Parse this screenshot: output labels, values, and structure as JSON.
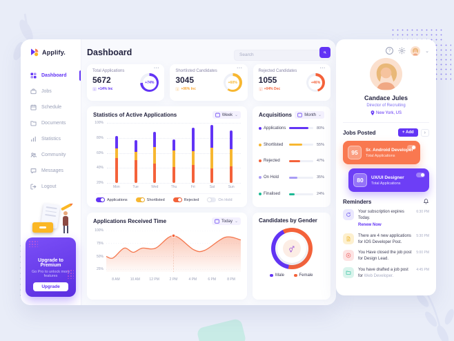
{
  "sidebar": {
    "logo": "Applify.",
    "items": [
      {
        "label": "Dashboard",
        "active": true
      },
      {
        "label": "Jobs"
      },
      {
        "label": "Schedule"
      },
      {
        "label": "Documents"
      },
      {
        "label": "Statistics"
      },
      {
        "label": "Community"
      },
      {
        "label": "Messages"
      },
      {
        "label": "Logout"
      }
    ],
    "upgrade": {
      "title": "Upgrade to Premium",
      "subtitle": "Go Pro to unlock more features",
      "button": "Upgrade"
    }
  },
  "header": {
    "title": "Dashboard",
    "search_placeholder": "Search"
  },
  "stat_cards": [
    {
      "label": "Total Applications",
      "value": "5672",
      "ring_label": "+74%",
      "ring_pct": 74,
      "color": "#6234f5",
      "delta": "+14% Inc",
      "delta_color": "#6234f5",
      "menu": "•••"
    },
    {
      "label": "Shortlisted Candidates",
      "value": "3045",
      "ring_label": "+60%",
      "ring_pct": 60,
      "color": "#f7b731",
      "delta": "+06% Inc",
      "delta_color": "#f7a431",
      "menu": "•••"
    },
    {
      "label": "Rejected Candidates",
      "value": "1055",
      "ring_label": "+46%",
      "ring_pct": 46,
      "color": "#f4623a",
      "delta": "+04% Dec",
      "delta_color": "#f4623a",
      "menu": "•••"
    }
  ],
  "chart_data": [
    {
      "id": "active_applications",
      "type": "bar",
      "title": "Statistics of Active Applications",
      "period": "Week",
      "categories": [
        "Mon",
        "Tue",
        "Wed",
        "Thu",
        "Fri",
        "Sat",
        "Sun"
      ],
      "baseline": 20,
      "ylim": [
        20,
        100
      ],
      "yticks": [
        "100%",
        "80%",
        "60%",
        "40%",
        "20%"
      ],
      "stack_tops": {
        "rejected": [
          53,
          50,
          46,
          41,
          44,
          39,
          42
        ],
        "shortlisted": [
          66,
          61,
          68,
          63,
          62,
          67,
          65
        ],
        "applications": [
          83,
          77,
          88,
          78,
          94,
          97,
          90
        ]
      },
      "colors": {
        "applications": "#6234f5",
        "shortlisted": "#f7b731",
        "rejected": "#f4623a",
        "on_hold": "#e3e6f3"
      },
      "legend": [
        {
          "label": "Applications",
          "color": "#6234f5",
          "on": true
        },
        {
          "label": "Shortlisted",
          "color": "#f7b731",
          "on": true
        },
        {
          "label": "Rejected",
          "color": "#f4623a",
          "on": true
        },
        {
          "label": "On Hold",
          "color": "#e3e6f3",
          "on": false
        }
      ]
    },
    {
      "id": "acquisitions",
      "type": "bar",
      "title": "Acquisitions",
      "period": "Month",
      "items": [
        {
          "label": "Applications",
          "value": 80,
          "color": "#6234f5"
        },
        {
          "label": "Shortlisted",
          "value": 55,
          "color": "#f7b731"
        },
        {
          "label": "Rejected",
          "value": 47,
          "color": "#f4623a"
        },
        {
          "label": "On Hold",
          "value": 35,
          "color": "#a99df5"
        },
        {
          "label": "Finalised",
          "value": 24,
          "color": "#1db994"
        }
      ]
    },
    {
      "id": "received_time",
      "type": "area",
      "title": "Applications Received Time",
      "period": "Today",
      "color": "#f4764c",
      "x_labels": [
        "8 AM",
        "10 AM",
        "12 PM",
        "2 PM",
        "4 PM",
        "6 PM",
        "8 PM"
      ],
      "yticks": [
        "100%",
        "75%",
        "50%",
        "25%"
      ],
      "ylim": [
        20,
        100
      ],
      "points": [
        [
          0,
          50
        ],
        [
          0.6,
          47
        ],
        [
          1.6,
          66
        ],
        [
          2.4,
          58
        ],
        [
          3.2,
          66
        ],
        [
          4.4,
          66
        ],
        [
          6,
          90
        ],
        [
          7.8,
          63
        ],
        [
          8.8,
          62
        ],
        [
          10.6,
          87
        ],
        [
          12,
          82
        ]
      ],
      "peak": {
        "x": 6,
        "pct": 90,
        "label": "2 PM"
      }
    },
    {
      "id": "gender",
      "type": "pie",
      "title": "Candidates by Gender",
      "slices": [
        {
          "label": "Male",
          "value": 40,
          "color": "#6234f5"
        },
        {
          "label": "Female",
          "value": 60,
          "color": "#f4623a"
        }
      ]
    }
  ],
  "right_panel": {
    "profile": {
      "name": "Candace Jules",
      "role": "Director of Recruiting",
      "location": "New York, US"
    },
    "jobs": {
      "title": "Jobs Posted",
      "add_label": "+ Add",
      "arrow": "›",
      "items": [
        {
          "count": "95",
          "title": "Sr. Android Developer",
          "subtitle": "Total Applications",
          "color": "#f97850",
          "toggle_on": true
        },
        {
          "count": "80",
          "title": "UX/UI Designer",
          "subtitle": "Total Applications",
          "color": "#6d3ef6",
          "toggle_on": true
        }
      ]
    },
    "reminders": {
      "title": "Reminders",
      "items": [
        {
          "icon": "refresh-icon",
          "text": "Your subscription expires Today.",
          "link": "Renew Now",
          "time": "6:30 PM",
          "tint": "#7c6cf0",
          "bg": "#eae7fd"
        },
        {
          "icon": "file-icon",
          "text": "There are 4 new applications for IOS Developer Post.",
          "time": "5:30 PM",
          "tint": "#f0b429",
          "bg": "#fdf0cf"
        },
        {
          "icon": "close-circle-icon",
          "text": "You Have closed the job post for Design Lead.",
          "time": "5:00 PM",
          "tint": "#ee6a6a",
          "bg": "#fde3e3"
        },
        {
          "icon": "folder-icon",
          "text": "You have drafted a job post for",
          "muted": "Web Developer.",
          "time": "4:45 PM",
          "tint": "#2fbf9f",
          "bg": "#daf4ec"
        }
      ]
    }
  }
}
